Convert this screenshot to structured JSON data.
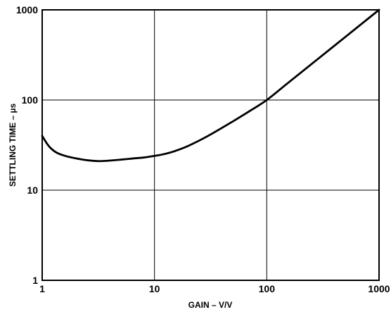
{
  "chart_data": {
    "type": "line",
    "xlabel": "GAIN – V/V",
    "ylabel": "SETTLING TIME – µs",
    "xscale": "log",
    "yscale": "log",
    "xlim": [
      1,
      1000
    ],
    "ylim": [
      1,
      1000
    ],
    "grid": true,
    "x_ticks": [
      "1",
      "10",
      "100",
      "1000"
    ],
    "y_ticks": [
      "1",
      "10",
      "100",
      "1000"
    ],
    "series": [
      {
        "x": [
          1,
          1.1,
          1.2,
          1.35,
          1.6,
          2,
          2.5,
          3.2,
          4,
          5,
          6.5,
          8,
          10,
          12,
          15,
          20,
          30,
          50,
          70,
          100,
          150,
          200,
          300,
          500,
          700,
          1000
        ],
        "y": [
          40,
          33,
          29,
          26,
          24,
          22.5,
          21.5,
          21,
          21.3,
          21.8,
          22.5,
          23,
          24,
          25,
          27,
          31,
          40,
          58,
          75,
          100,
          150,
          200,
          300,
          500,
          700,
          1000
        ]
      }
    ]
  }
}
